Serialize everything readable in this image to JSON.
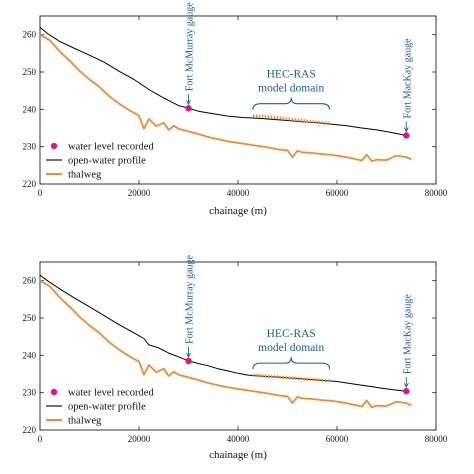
{
  "chart_data": [
    {
      "type": "line",
      "xlabel": "chainage (m)",
      "ylabel": "",
      "xlim": [
        0,
        80000
      ],
      "ylim": [
        220,
        265
      ],
      "xticks": [
        0,
        20000,
        40000,
        60000,
        80000
      ],
      "yticks": [
        220,
        230,
        240,
        250,
        260
      ],
      "grid": false,
      "legend": "bottom-left",
      "series": [
        {
          "name": "open-water profile",
          "color": "#000000",
          "x": [
            0,
            1500,
            4000,
            7000,
            10000,
            13000,
            16000,
            19000,
            22000,
            25000,
            28000,
            30000,
            32000,
            35000,
            38000,
            41000,
            44000,
            47000,
            50000,
            53000,
            56000,
            59000,
            62000,
            65000,
            68000,
            71000,
            74000
          ],
          "y": [
            262,
            260.3,
            258.2,
            256.3,
            254.5,
            252.6,
            250.2,
            248,
            245.3,
            243,
            241,
            240.3,
            239.5,
            238.8,
            238.2,
            237.8,
            237.6,
            237.3,
            237,
            236.7,
            236.4,
            236,
            235.6,
            235,
            234.5,
            233.8,
            233
          ]
        },
        {
          "name": "thalweg",
          "color": "#f28a30",
          "x": [
            0,
            2000,
            4000,
            6000,
            8000,
            10000,
            12000,
            14000,
            16000,
            18000,
            20000,
            21000,
            22000,
            23500,
            25000,
            26000,
            27000,
            28000,
            30000,
            32000,
            34000,
            36000,
            38000,
            40000,
            42000,
            44000,
            46000,
            48000,
            50000,
            51000,
            52000,
            53000,
            55000,
            57000,
            59000,
            61000,
            63000,
            65000,
            66000,
            67000,
            68000,
            70000,
            72000,
            74000,
            75000
          ],
          "y": [
            260,
            258.5,
            255.5,
            253,
            250.3,
            248,
            246,
            243.5,
            241.5,
            239.8,
            238.3,
            234.8,
            237.4,
            235.5,
            236.4,
            234.5,
            235.6,
            234.8,
            234.1,
            233.4,
            232.6,
            232,
            231.4,
            231,
            230.6,
            230.2,
            229.8,
            229.3,
            229,
            227.2,
            228.9,
            228.5,
            228.3,
            228,
            227.8,
            227.4,
            226.9,
            226.3,
            227.9,
            226.1,
            226.5,
            226.4,
            227.6,
            227.2,
            226.6
          ]
        }
      ],
      "water_level_recorded": {
        "name": "water level recorded",
        "color": "#e0157a",
        "x": [
          30000,
          74000
        ],
        "y": [
          240.3,
          233
        ]
      },
      "hecras_profile": {
        "color": "#f28a30",
        "x": [
          43000,
          45000,
          47000,
          49000,
          51000,
          53000,
          55000,
          57000,
          58500
        ],
        "y": [
          238.3,
          238.1,
          237.9,
          237.6,
          237.3,
          237,
          236.7,
          236.4,
          236.2
        ]
      },
      "annotations": {
        "fort_mcmurray": "Fort McMurray gauge",
        "fort_mackay": "Fort MacKay gauge",
        "domain_1": "HEC-RAS",
        "domain_2": "model domain"
      }
    },
    {
      "type": "line",
      "xlabel": "chainage (m)",
      "ylabel": "",
      "xlim": [
        0,
        80000
      ],
      "ylim": [
        220,
        265
      ],
      "xticks": [
        0,
        20000,
        40000,
        60000,
        80000
      ],
      "yticks": [
        220,
        230,
        240,
        250,
        260
      ],
      "grid": false,
      "legend": "bottom-left",
      "series": [
        {
          "name": "open-water profile",
          "color": "#000000",
          "x": [
            0,
            1500,
            4000,
            7000,
            10000,
            13000,
            16000,
            19000,
            21000,
            22000,
            24000,
            26000,
            28000,
            30000,
            32000,
            34000,
            36000,
            38000,
            40000,
            42000,
            44000,
            46000,
            48000,
            50000,
            52000,
            54000,
            56000,
            58000,
            60000,
            62000,
            64000,
            66000,
            68000,
            70000,
            72000,
            74000
          ],
          "y": [
            261.5,
            260,
            257.8,
            255.3,
            253,
            250.6,
            248.2,
            246,
            244.5,
            242.8,
            242,
            240.6,
            239.6,
            238.5,
            237.8,
            237.2,
            236.4,
            235.8,
            235.2,
            234.7,
            234.5,
            234.3,
            234.2,
            234,
            233.8,
            233.6,
            233.4,
            233.2,
            233,
            232.6,
            232.2,
            231.8,
            231.4,
            231,
            230.7,
            230.4
          ]
        },
        {
          "name": "thalweg",
          "color": "#f28a30",
          "x": [
            0,
            2000,
            4000,
            6000,
            8000,
            10000,
            12000,
            14000,
            16000,
            18000,
            20000,
            21000,
            22000,
            23500,
            25000,
            26000,
            27000,
            28000,
            30000,
            32000,
            34000,
            36000,
            38000,
            40000,
            42000,
            44000,
            46000,
            48000,
            50000,
            51000,
            52000,
            53000,
            55000,
            57000,
            59000,
            61000,
            63000,
            65000,
            66000,
            67000,
            68000,
            70000,
            72000,
            74000,
            75000
          ],
          "y": [
            260,
            258.5,
            255.5,
            253,
            250.3,
            248,
            246,
            243.5,
            241.5,
            239.8,
            238.3,
            234.8,
            237.4,
            235.5,
            236.4,
            234.5,
            235.6,
            234.8,
            234.1,
            233.4,
            232.6,
            232,
            231.4,
            231,
            230.6,
            230.2,
            229.8,
            229.3,
            229,
            227.2,
            228.9,
            228.5,
            228.3,
            228,
            227.8,
            227.4,
            226.9,
            226.3,
            227.9,
            226.1,
            226.5,
            226.4,
            227.6,
            227.2,
            226.6
          ]
        }
      ],
      "water_level_recorded": {
        "name": "water level recorded",
        "color": "#e0157a",
        "x": [
          30000,
          74000
        ],
        "y": [
          238.5,
          230.4
        ]
      },
      "hecras_profile": {
        "color": "#f28a30",
        "x": [
          43000,
          45000,
          47000,
          49000,
          51000,
          53000,
          55000,
          57000,
          58500
        ],
        "y": [
          234.7,
          234.5,
          234.3,
          234.1,
          233.9,
          233.7,
          233.5,
          233.3,
          233.2
        ]
      },
      "annotations": {
        "fort_mcmurray": "Fort McMurray gauge",
        "fort_mackay": "Fort MacKay gauge",
        "domain_1": "HEC-RAS",
        "domain_2": "model domain"
      }
    }
  ]
}
